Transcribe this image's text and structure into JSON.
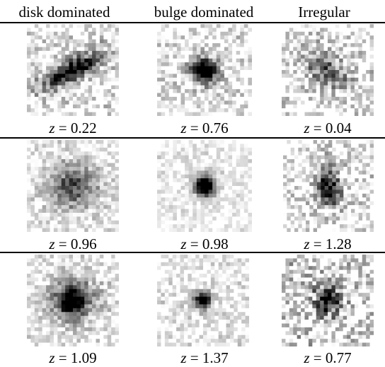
{
  "table": {
    "columns": [
      "disk dominated",
      "bulge dominated",
      "Irregular"
    ],
    "rows": [
      {
        "cells": [
          {
            "morphology": "disk dominated",
            "z_label": "z",
            "z_value": "= 0.22"
          },
          {
            "morphology": "bulge dominated",
            "z_label": "z",
            "z_value": "= 0.76"
          },
          {
            "morphology": "Irregular",
            "z_label": "z",
            "z_value": "= 0.04"
          }
        ]
      },
      {
        "cells": [
          {
            "morphology": "disk dominated",
            "z_label": "z",
            "z_value": "= 0.96"
          },
          {
            "morphology": "bulge dominated",
            "z_label": "z",
            "z_value": "= 0.98"
          },
          {
            "morphology": "Irregular",
            "z_label": "z",
            "z_value": "= 1.28"
          }
        ]
      },
      {
        "cells": [
          {
            "morphology": "disk dominated",
            "z_label": "z",
            "z_value": "= 1.09"
          },
          {
            "morphology": "bulge dominated",
            "z_label": "z",
            "z_value": "= 1.37"
          },
          {
            "morphology": "Irregular",
            "z_label": "z",
            "z_value": "= 0.77"
          }
        ]
      }
    ]
  },
  "colors": {
    "ink": "#000000",
    "background": "#ffffff"
  }
}
